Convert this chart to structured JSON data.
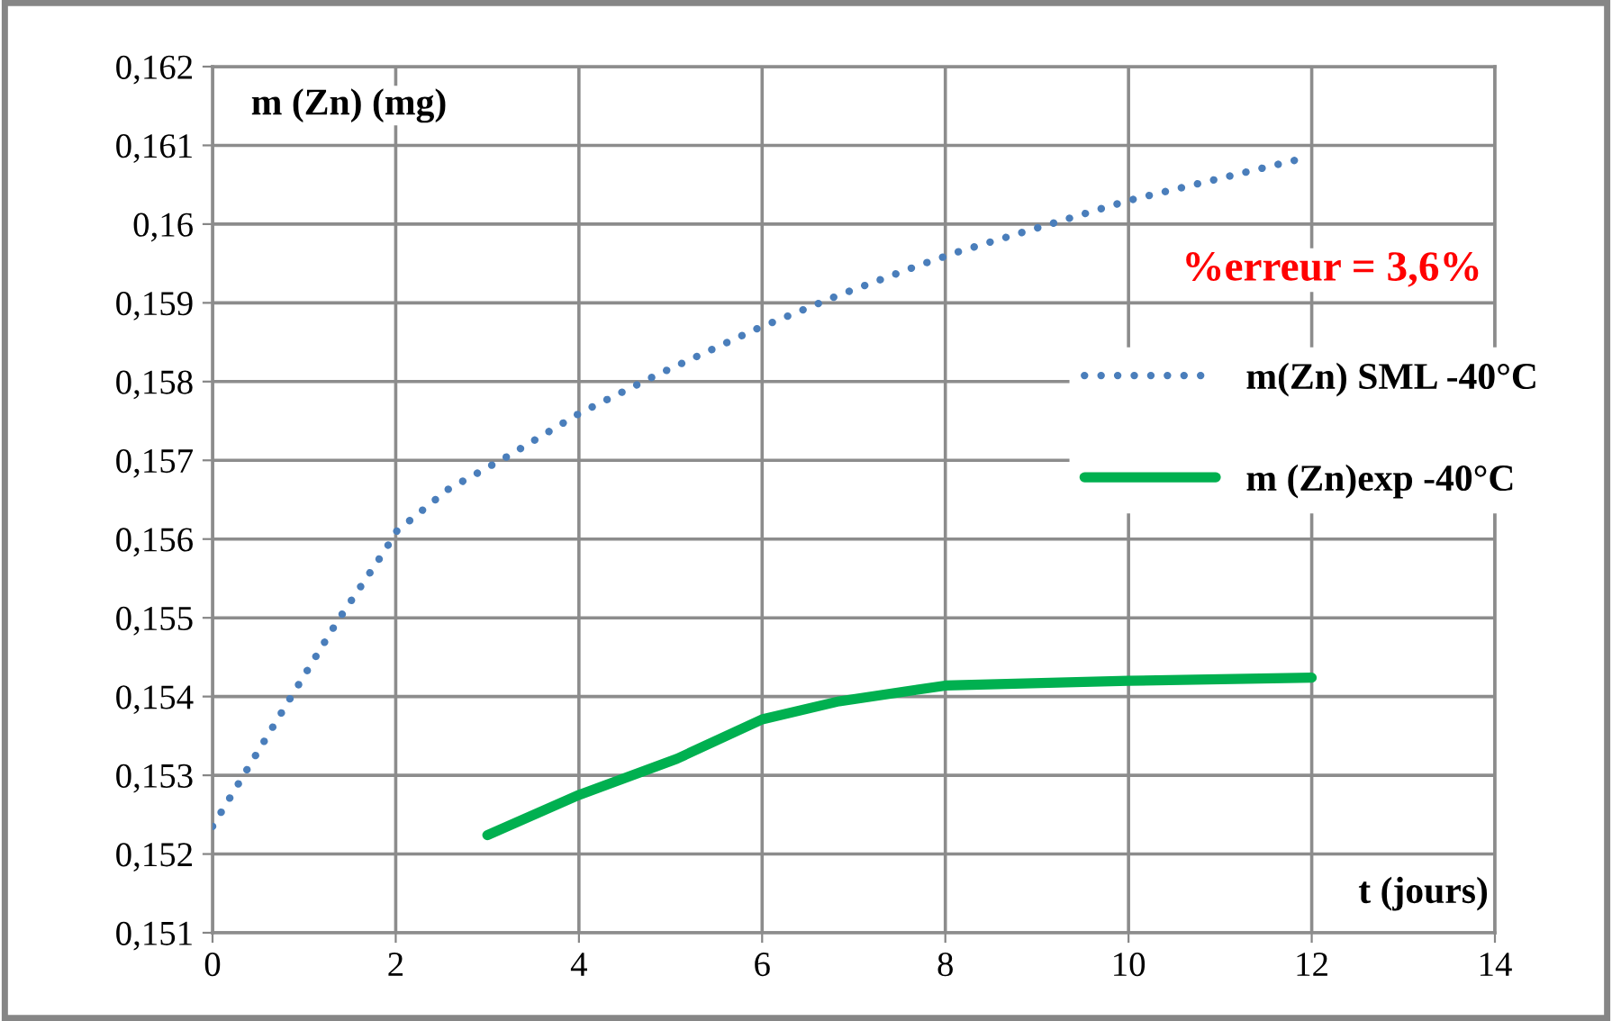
{
  "chart_data": {
    "type": "line",
    "ylabel": "m (Zn) (mg)",
    "xlabel": "t (jours)",
    "annotations": [
      "%erreur = 3,6%"
    ],
    "xlim": [
      0,
      14
    ],
    "xticks": [
      0,
      2,
      4,
      6,
      8,
      10,
      12,
      14
    ],
    "ylim": [
      0.151,
      0.162
    ],
    "yticks": [
      {
        "value": 0.151,
        "label": "0,151"
      },
      {
        "value": 0.152,
        "label": "0,152"
      },
      {
        "value": 0.153,
        "label": "0,153"
      },
      {
        "value": 0.154,
        "label": "0,154"
      },
      {
        "value": 0.155,
        "label": "0,155"
      },
      {
        "value": 0.156,
        "label": "0,156"
      },
      {
        "value": 0.157,
        "label": "0,157"
      },
      {
        "value": 0.158,
        "label": "0,158"
      },
      {
        "value": 0.159,
        "label": "0,159"
      },
      {
        "value": 0.16,
        "label": "0,16"
      },
      {
        "value": 0.161,
        "label": "0,161"
      },
      {
        "value": 0.162,
        "label": "0,162"
      }
    ],
    "grid": true,
    "legend": "right",
    "marker": "none",
    "series": [
      {
        "name": "m(Zn) SML -40°C",
        "color": "#4a7ebb",
        "line_style": "dotted",
        "x": [
          0,
          0.37,
          0.86,
          1.36,
          1.89,
          2.0,
          2.57,
          3.19,
          4.01,
          4.86,
          5.94,
          6.82,
          7.72,
          8.17,
          10.0,
          11.85
        ],
        "values": [
          0.15235,
          0.15306,
          0.154,
          0.15495,
          0.15587,
          0.15609,
          0.15663,
          0.15703,
          0.1576,
          0.15809,
          0.15867,
          0.15909,
          0.15948,
          0.15966,
          0.1603,
          0.16082
        ]
      },
      {
        "name": "m (Zn)exp -40°C",
        "color": "#00b050",
        "line_style": "solid",
        "x": [
          3,
          4,
          5.07,
          6,
          6.84,
          8,
          10,
          12
        ],
        "values": [
          0.15224,
          0.15275,
          0.15321,
          0.15371,
          0.15394,
          0.15414,
          0.1542,
          0.15424
        ]
      }
    ]
  }
}
